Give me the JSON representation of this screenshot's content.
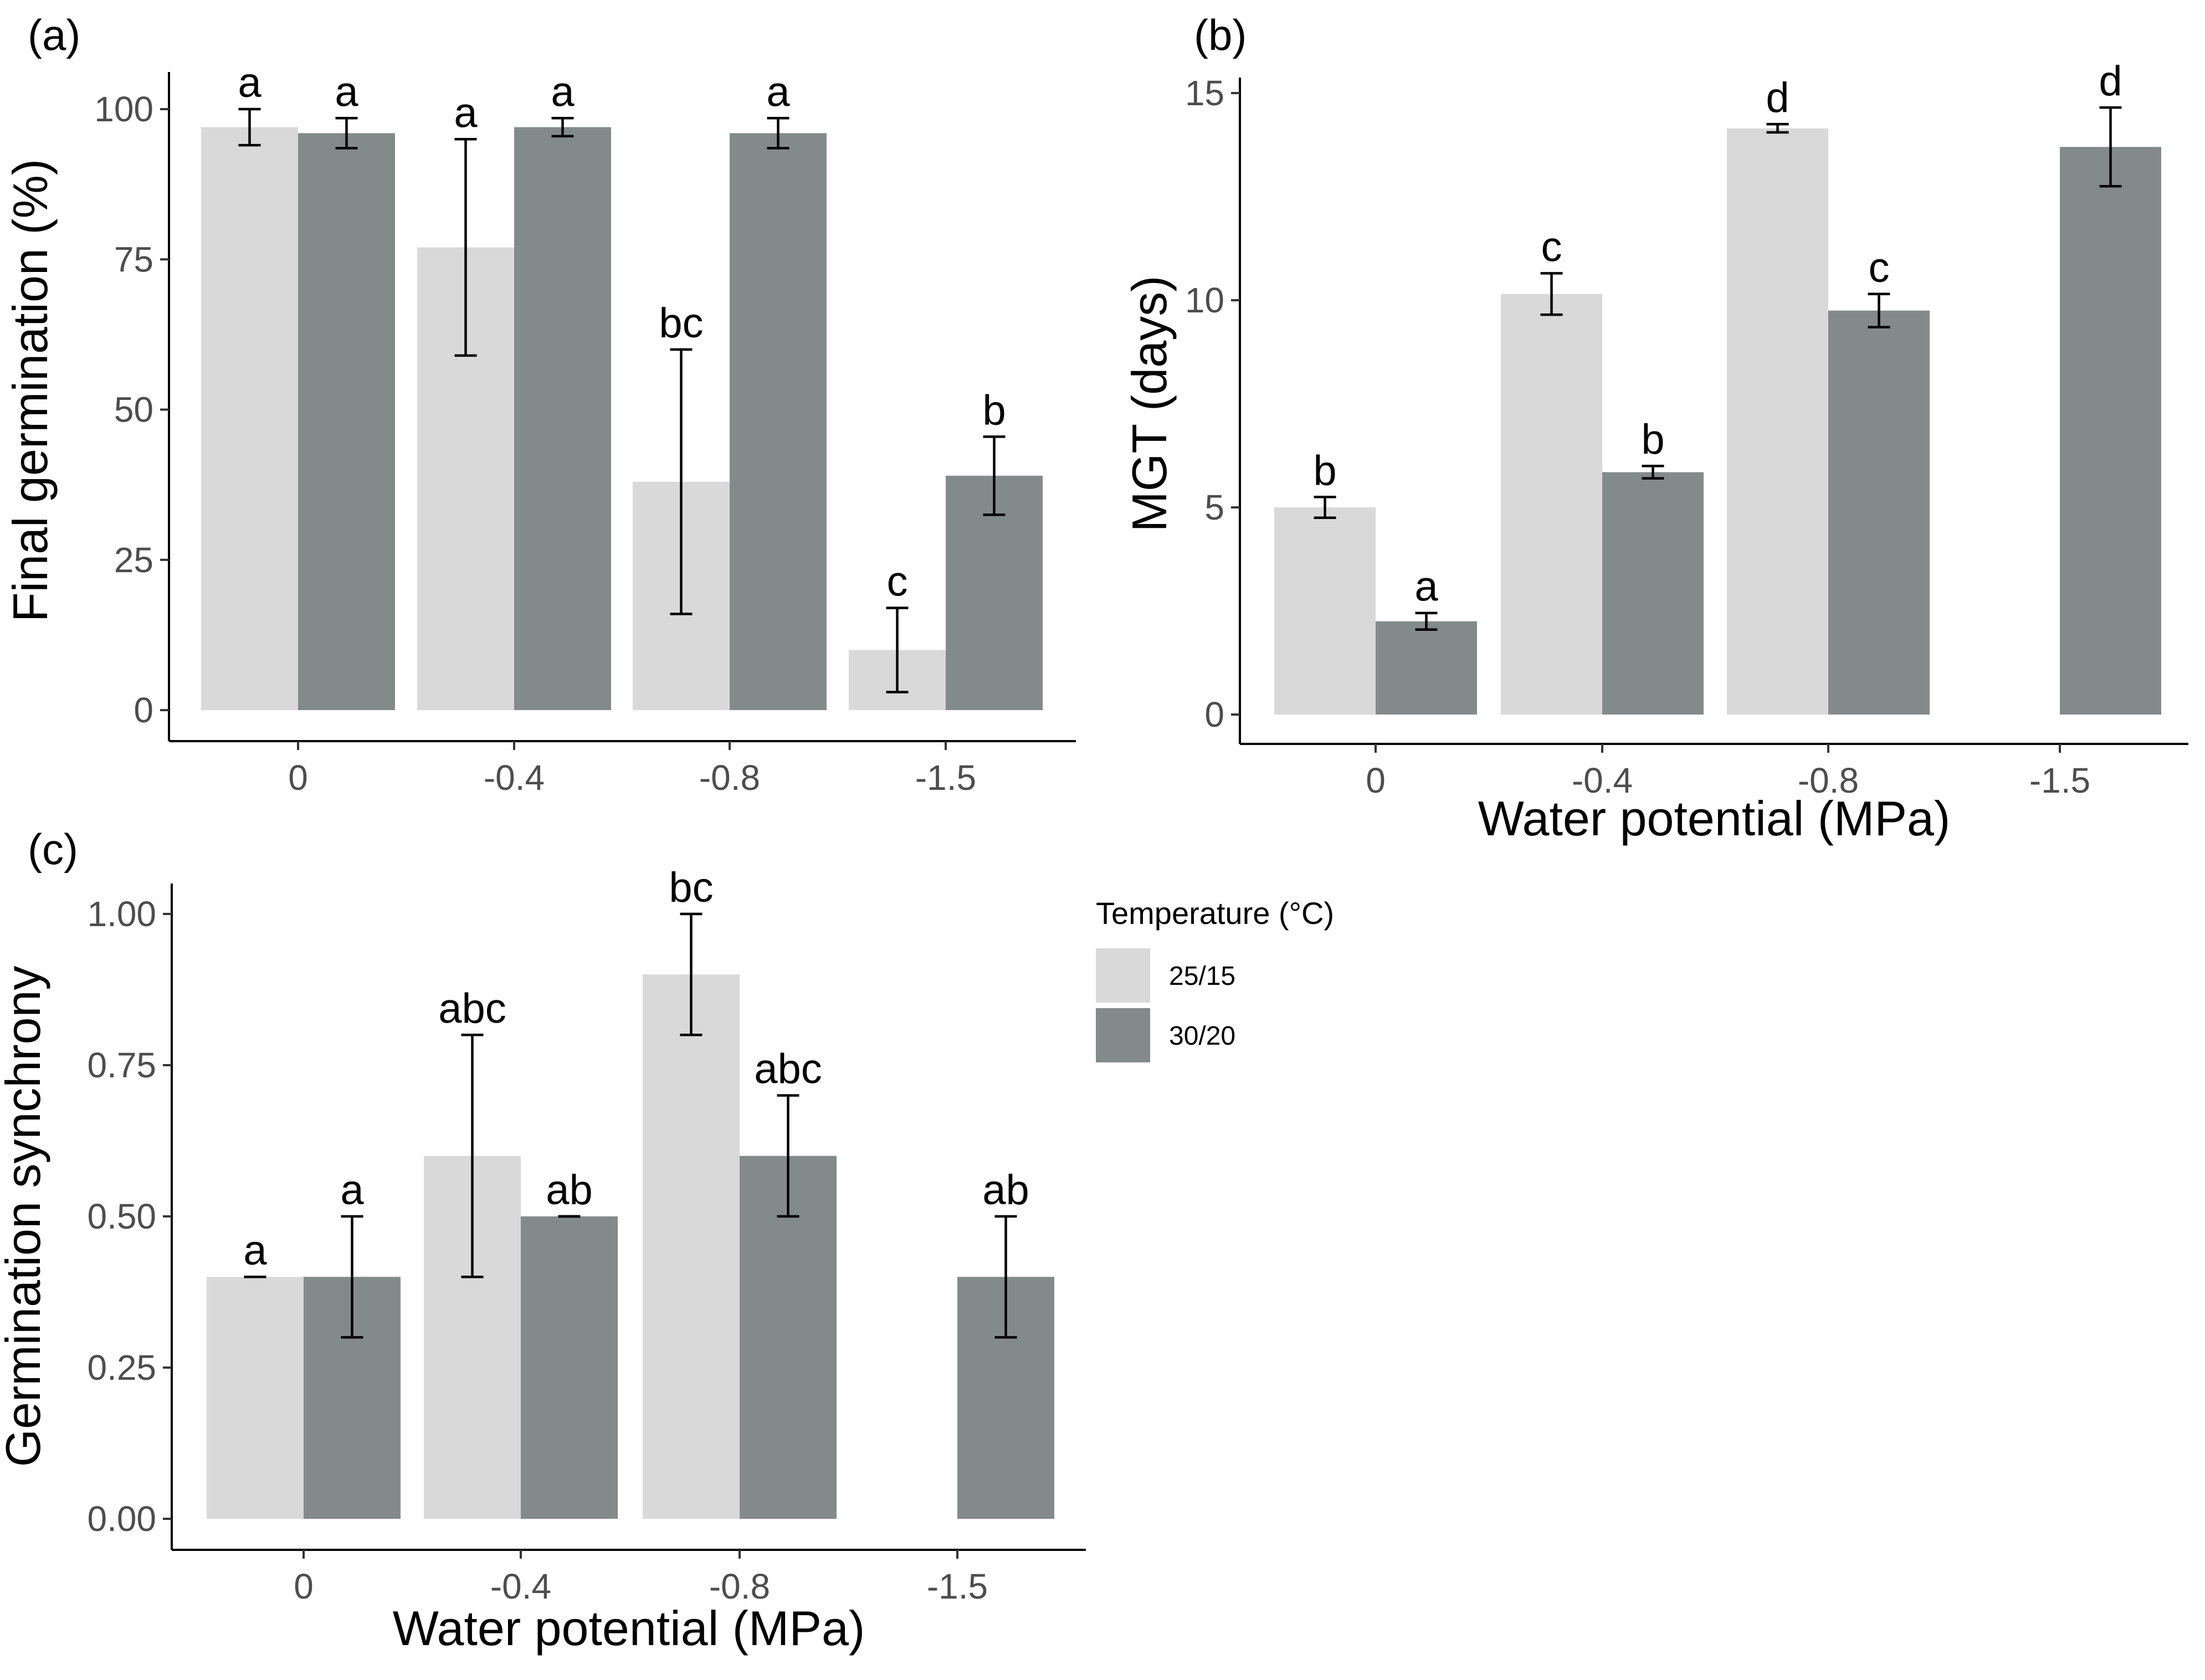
{
  "legend": {
    "title": "Temperature (°C)",
    "entries": [
      {
        "label": "25/15",
        "color": "#d9d9d9"
      },
      {
        "label": "30/20",
        "color": "#838b8a"
      }
    ]
  },
  "chart_data": [
    {
      "type": "bar",
      "panel": "(a)",
      "title": "",
      "xlabel": "",
      "ylabel": "Final germination (%)",
      "ylim": [
        0,
        100
      ],
      "yticks": [
        0,
        25,
        50,
        75,
        100
      ],
      "ytick_labels": [
        "0",
        "25",
        "50",
        "75",
        "100"
      ],
      "categories": [
        "0",
        "-0.4",
        "-0.8",
        "-1.5"
      ],
      "series": [
        {
          "name": "25/15",
          "values": [
            97,
            77,
            38,
            10
          ],
          "errors": [
            3,
            18,
            22,
            7
          ],
          "letters": [
            "a",
            "a",
            "bc",
            "c"
          ]
        },
        {
          "name": "30/20",
          "values": [
            96,
            97,
            96,
            39
          ],
          "errors": [
            2.5,
            1.5,
            2.5,
            6.5
          ],
          "letters": [
            "a",
            "a",
            "a",
            "b"
          ]
        }
      ]
    },
    {
      "type": "bar",
      "panel": "(b)",
      "title": "",
      "xlabel": "Water potential (MPa)",
      "ylabel": "MGT (days)",
      "ylim": [
        0,
        15
      ],
      "yticks": [
        0,
        5,
        10,
        15
      ],
      "ytick_labels": [
        "0",
        "5",
        "10",
        "15"
      ],
      "categories": [
        "0",
        "-0.4",
        "-0.8",
        "-1.5"
      ],
      "series": [
        {
          "name": "25/15",
          "values": [
            5.0,
            10.15,
            14.15,
            null
          ],
          "errors": [
            0.25,
            0.5,
            0.1,
            null
          ],
          "letters": [
            "b",
            "c",
            "d",
            ""
          ]
        },
        {
          "name": "30/20",
          "values": [
            2.25,
            5.85,
            9.75,
            13.7
          ],
          "errors": [
            0.2,
            0.15,
            0.4,
            0.95
          ],
          "letters": [
            "a",
            "b",
            "c",
            "d"
          ]
        }
      ]
    },
    {
      "type": "bar",
      "panel": "(c)",
      "title": "",
      "xlabel": "Water potential (MPa)",
      "ylabel": "Germination synchrony",
      "ylim": [
        0,
        1
      ],
      "yticks": [
        0,
        0.25,
        0.5,
        0.75,
        1.0
      ],
      "ytick_labels": [
        "0.00",
        "0.25",
        "0.50",
        "0.75",
        "1.00"
      ],
      "categories": [
        "0",
        "-0.4",
        "-0.8",
        "-1.5"
      ],
      "series": [
        {
          "name": "25/15",
          "values": [
            0.4,
            0.6,
            0.9,
            null
          ],
          "errors": [
            0,
            0.2,
            0.1,
            null
          ],
          "letters": [
            "a",
            "abc",
            "bc",
            ""
          ]
        },
        {
          "name": "30/20",
          "values": [
            0.4,
            0.5,
            0.6,
            0.4
          ],
          "errors": [
            0.1,
            0,
            0.1,
            0.1
          ],
          "letters": [
            "a",
            "ab",
            "abc",
            "ab"
          ]
        }
      ]
    }
  ]
}
